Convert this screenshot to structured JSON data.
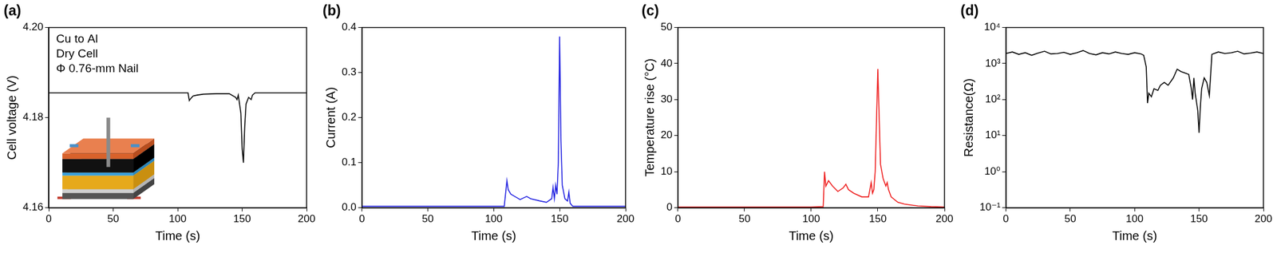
{
  "chart_data": [
    {
      "type": "line",
      "title": "(a)",
      "x_label": "Time (s)",
      "y_label": "Cell voltage (V)",
      "annotations": [
        "Cu to Al",
        "Dry Cell",
        "Φ 0.76-mm Nail"
      ],
      "color": "#000000",
      "grid": false,
      "xlim": [
        0,
        200
      ],
      "xticks": [
        0,
        50,
        100,
        150,
        200
      ],
      "ylim": [
        4.16,
        4.2
      ],
      "yticks": [
        4.16,
        4.18,
        {
          "value": 4.2,
          "label": "4.20"
        }
      ],
      "x": [
        0,
        10,
        20,
        30,
        40,
        50,
        60,
        70,
        80,
        90,
        100,
        108,
        109,
        110,
        112,
        115,
        120,
        130,
        140,
        145,
        146,
        147,
        149,
        150,
        151,
        152,
        153,
        155,
        157,
        158,
        160,
        170,
        180,
        190,
        200
      ],
      "values": [
        4.1855,
        4.1855,
        4.1855,
        4.1855,
        4.1855,
        4.1855,
        4.1855,
        4.1855,
        4.1855,
        4.1855,
        4.1855,
        4.1855,
        4.1838,
        4.1842,
        4.1848,
        4.185,
        4.1852,
        4.1853,
        4.1853,
        4.1845,
        4.184,
        4.185,
        4.181,
        4.173,
        4.17,
        4.178,
        4.183,
        4.1845,
        4.184,
        4.185,
        4.1855,
        4.1855,
        4.1855,
        4.1855,
        4.1855
      ]
    },
    {
      "type": "line",
      "title": "(b)",
      "x_label": "Time (s)",
      "y_label": "Current (A)",
      "color": "#2020e0",
      "grid": false,
      "xlim": [
        0,
        200
      ],
      "xticks": [
        0,
        50,
        100,
        150,
        200
      ],
      "ylim": [
        0,
        0.4
      ],
      "yticks": [
        {
          "value": 0,
          "label": "0.0"
        },
        0.1,
        0.2,
        0.3,
        0.4
      ],
      "x": [
        0,
        20,
        40,
        60,
        80,
        100,
        108,
        110,
        111,
        113,
        116,
        120,
        125,
        128,
        135,
        140,
        144,
        145,
        146,
        147,
        148,
        149,
        150,
        151,
        152,
        154,
        156,
        157,
        158,
        160,
        180,
        200
      ],
      "values": [
        0.003,
        0.003,
        0.003,
        0.003,
        0.003,
        0.003,
        0.003,
        0.06,
        0.04,
        0.03,
        0.025,
        0.018,
        0.025,
        0.02,
        0.015,
        0.012,
        0.02,
        0.045,
        0.02,
        0.05,
        0.03,
        0.1,
        0.38,
        0.15,
        0.05,
        0.02,
        0.015,
        0.035,
        0.01,
        0.003,
        0.003,
        0.003
      ]
    },
    {
      "type": "line",
      "title": "(c)",
      "x_label": "Time (s)",
      "y_label": "Temperature rise (°C)",
      "color": "#ee1c1c",
      "grid": false,
      "xlim": [
        0,
        200
      ],
      "xticks": [
        0,
        50,
        100,
        150,
        200
      ],
      "ylim": [
        0,
        50
      ],
      "yticks": [
        0,
        10,
        20,
        30,
        40,
        50
      ],
      "x": [
        0,
        20,
        40,
        60,
        80,
        100,
        109,
        110,
        111,
        113,
        116,
        120,
        124,
        126,
        128,
        132,
        138,
        143,
        145,
        146,
        147,
        148,
        150,
        151,
        152,
        154,
        156,
        157,
        158,
        160,
        165,
        170,
        180,
        190,
        200
      ],
      "values": [
        0.2,
        0.2,
        0.2,
        0.2,
        0.2,
        0.2,
        0.3,
        10,
        6,
        7.5,
        6,
        4.5,
        5.5,
        6.5,
        5,
        4,
        3,
        3,
        7,
        4,
        5,
        10,
        38.5,
        25,
        12,
        8,
        6,
        7,
        5,
        3,
        1.5,
        1,
        0.5,
        0.3,
        0.2
      ]
    },
    {
      "type": "line",
      "title": "(d)",
      "x_label": "Time (s)",
      "y_label": "Resistance(Ω)",
      "color": "#000000",
      "grid": false,
      "log": "y",
      "xlim": [
        0,
        200
      ],
      "xticks": [
        0,
        50,
        100,
        150,
        200
      ],
      "ylim": [
        0.1,
        10000
      ],
      "yticks": [
        {
          "value": 0.1,
          "label": "10⁻¹"
        },
        {
          "value": 1,
          "label": "10⁰"
        },
        {
          "value": 10,
          "label": "10¹"
        },
        {
          "value": 100,
          "label": "10²"
        },
        {
          "value": 1000,
          "label": "10³"
        },
        {
          "value": 10000,
          "label": "10⁴"
        }
      ],
      "x": [
        0,
        5,
        10,
        15,
        20,
        25,
        30,
        35,
        40,
        45,
        50,
        55,
        60,
        65,
        70,
        75,
        80,
        85,
        90,
        95,
        100,
        105,
        107,
        109,
        110,
        111,
        113,
        115,
        118,
        120,
        123,
        126,
        130,
        133,
        136,
        139,
        142,
        144,
        145,
        146,
        147,
        149,
        150,
        151,
        152,
        154,
        156,
        158,
        160,
        165,
        170,
        175,
        180,
        185,
        190,
        195,
        200
      ],
      "values": [
        1900,
        2100,
        1800,
        2000,
        1700,
        1950,
        2200,
        1850,
        1900,
        2050,
        1800,
        2000,
        2300,
        1900,
        1750,
        2000,
        1850,
        2100,
        1900,
        1800,
        2000,
        1850,
        1700,
        800,
        80,
        150,
        120,
        200,
        180,
        250,
        300,
        250,
        400,
        700,
        600,
        550,
        500,
        200,
        100,
        400,
        150,
        50,
        12,
        60,
        200,
        400,
        300,
        130,
        1800,
        2100,
        1900,
        2000,
        2200,
        1850,
        1950,
        2100,
        1900
      ]
    }
  ]
}
